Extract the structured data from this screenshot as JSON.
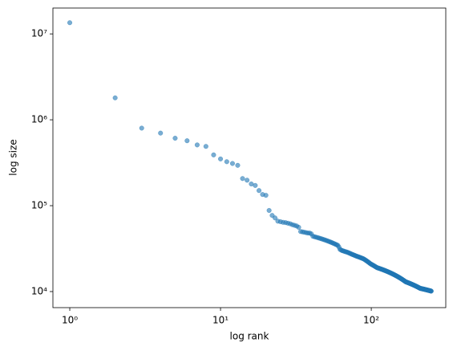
{
  "chart_data": {
    "type": "scatter",
    "xlabel": "log rank",
    "ylabel": "log size",
    "xscale": "log",
    "yscale": "log",
    "xlim": [
      0.773,
      312
    ],
    "ylim": [
      6500,
      20000000
    ],
    "xticks": [
      {
        "value": 1,
        "label": "10⁰"
      },
      {
        "value": 10,
        "label": "10¹"
      },
      {
        "value": 100,
        "label": "10²"
      }
    ],
    "yticks": [
      {
        "value": 10000,
        "label": "10⁴"
      },
      {
        "value": 100000,
        "label": "10⁵"
      },
      {
        "value": 1000000,
        "label": "10⁶"
      },
      {
        "value": 10000000,
        "label": "10⁷"
      }
    ],
    "series": [
      {
        "color": "#1f77b4",
        "x": [
          1,
          2,
          3,
          4,
          5,
          6,
          7,
          8,
          9,
          10,
          11,
          12,
          13,
          14,
          15,
          16,
          17,
          18,
          19,
          20,
          21,
          22,
          23,
          24,
          25,
          26,
          27,
          28,
          29,
          30,
          31,
          32,
          33,
          34,
          35,
          36,
          37,
          38,
          39,
          40,
          41,
          42,
          43,
          44,
          45,
          46,
          47,
          48,
          49,
          50,
          51,
          52,
          53,
          54,
          55,
          56,
          57,
          58,
          59,
          60,
          61,
          62,
          63,
          64,
          65,
          66,
          67,
          68,
          69,
          70,
          71,
          72,
          73,
          74,
          75,
          76,
          77,
          78,
          79,
          80,
          81,
          82,
          83,
          84,
          85,
          86,
          87,
          88,
          89,
          90,
          91,
          92,
          93,
          94,
          95,
          96,
          97,
          98,
          99,
          100,
          101,
          102,
          103,
          104,
          105,
          106,
          107,
          108,
          109,
          110,
          111,
          112,
          113,
          114,
          115,
          116,
          117,
          118,
          119,
          120,
          121,
          122,
          123,
          124,
          125,
          126,
          127,
          128,
          129,
          130,
          131,
          132,
          133,
          134,
          135,
          136,
          137,
          138,
          139,
          140,
          141,
          142,
          143,
          144,
          145,
          146,
          147,
          148,
          149,
          150,
          151,
          152,
          153,
          154,
          155,
          156,
          157,
          158,
          159,
          160,
          161,
          162,
          163,
          164,
          165,
          166,
          167,
          168,
          169,
          170,
          171,
          172,
          173,
          174,
          175,
          176,
          177,
          178,
          179,
          180,
          181,
          182,
          183,
          184,
          185,
          186,
          187,
          188,
          189,
          190,
          191,
          192,
          193,
          194,
          195,
          196,
          197,
          198,
          199,
          200,
          201,
          202,
          203,
          204,
          205,
          206,
          207,
          208,
          209,
          210,
          211,
          212,
          213,
          214,
          215,
          216,
          217,
          218,
          219,
          220,
          221,
          222,
          223,
          224,
          225,
          226,
          227,
          228,
          229,
          230,
          231,
          232,
          233,
          234,
          235,
          236,
          237,
          238,
          239,
          240,
          241,
          242,
          243,
          244,
          245,
          246,
          247,
          248,
          249,
          250
        ],
        "values": [
          13500000,
          1800000,
          800000,
          700000,
          610000,
          570000,
          510000,
          490000,
          390000,
          350000,
          325000,
          310000,
          295000,
          207000,
          198000,
          179000,
          172000,
          150000,
          135000,
          132000,
          88000,
          77000,
          72000,
          66000,
          65000,
          64000,
          63500,
          62500,
          61500,
          60000,
          59000,
          58000,
          56000,
          50000,
          49500,
          49000,
          48500,
          48000,
          48000,
          47000,
          44000,
          43500,
          43000,
          42500,
          42000,
          41500,
          41000,
          40500,
          40000,
          39500,
          39000,
          38500,
          38000,
          37500,
          37000,
          36500,
          36000,
          35500,
          35000,
          34500,
          33000,
          31000,
          30500,
          30000,
          29800,
          29500,
          29200,
          29000,
          28800,
          28500,
          28200,
          27900,
          27600,
          27300,
          27000,
          26800,
          26500,
          26300,
          26000,
          25800,
          25600,
          25400,
          25200,
          25000,
          24800,
          24600,
          24400,
          24200,
          24000,
          23700,
          23400,
          23100,
          22800,
          22500,
          22200,
          21900,
          21600,
          21300,
          21000,
          20800,
          20600,
          20400,
          20200,
          20000,
          19800,
          19600,
          19400,
          19200,
          19000,
          18900,
          18800,
          18700,
          18600,
          18500,
          18400,
          18300,
          18200,
          18100,
          18000,
          17900,
          17800,
          17700,
          17600,
          17500,
          17400,
          17300,
          17200,
          17100,
          17000,
          16900,
          16800,
          16700,
          16600,
          16500,
          16400,
          16300,
          16200,
          16100,
          16000,
          15900,
          15800,
          15700,
          15600,
          15500,
          15400,
          15300,
          15200,
          15100,
          15000,
          14900,
          14800,
          14700,
          14600,
          14500,
          14400,
          14300,
          14200,
          14100,
          14000,
          13900,
          13800,
          13700,
          13600,
          13500,
          13400,
          13300,
          13200,
          13100,
          13000,
          12950,
          12900,
          12850,
          12800,
          12750,
          12700,
          12650,
          12600,
          12550,
          12500,
          12450,
          12400,
          12350,
          12300,
          12250,
          12200,
          12150,
          12100,
          12050,
          12000,
          11950,
          11900,
          11850,
          11800,
          11750,
          11700,
          11650,
          11600,
          11550,
          11500,
          11450,
          11400,
          11350,
          11300,
          11250,
          11200,
          11150,
          11100,
          11050,
          11000,
          10950,
          10900,
          10880,
          10860,
          10840,
          10820,
          10800,
          10780,
          10760,
          10740,
          10720,
          10700,
          10680,
          10660,
          10640,
          10620,
          10600,
          10580,
          10560,
          10540,
          10520,
          10500,
          10480,
          10460,
          10440,
          10420,
          10400,
          10380,
          10360,
          10340,
          10320,
          10300,
          10280,
          10260,
          10240,
          10220,
          10200,
          10180,
          10160,
          10140,
          10120
        ]
      }
    ]
  }
}
